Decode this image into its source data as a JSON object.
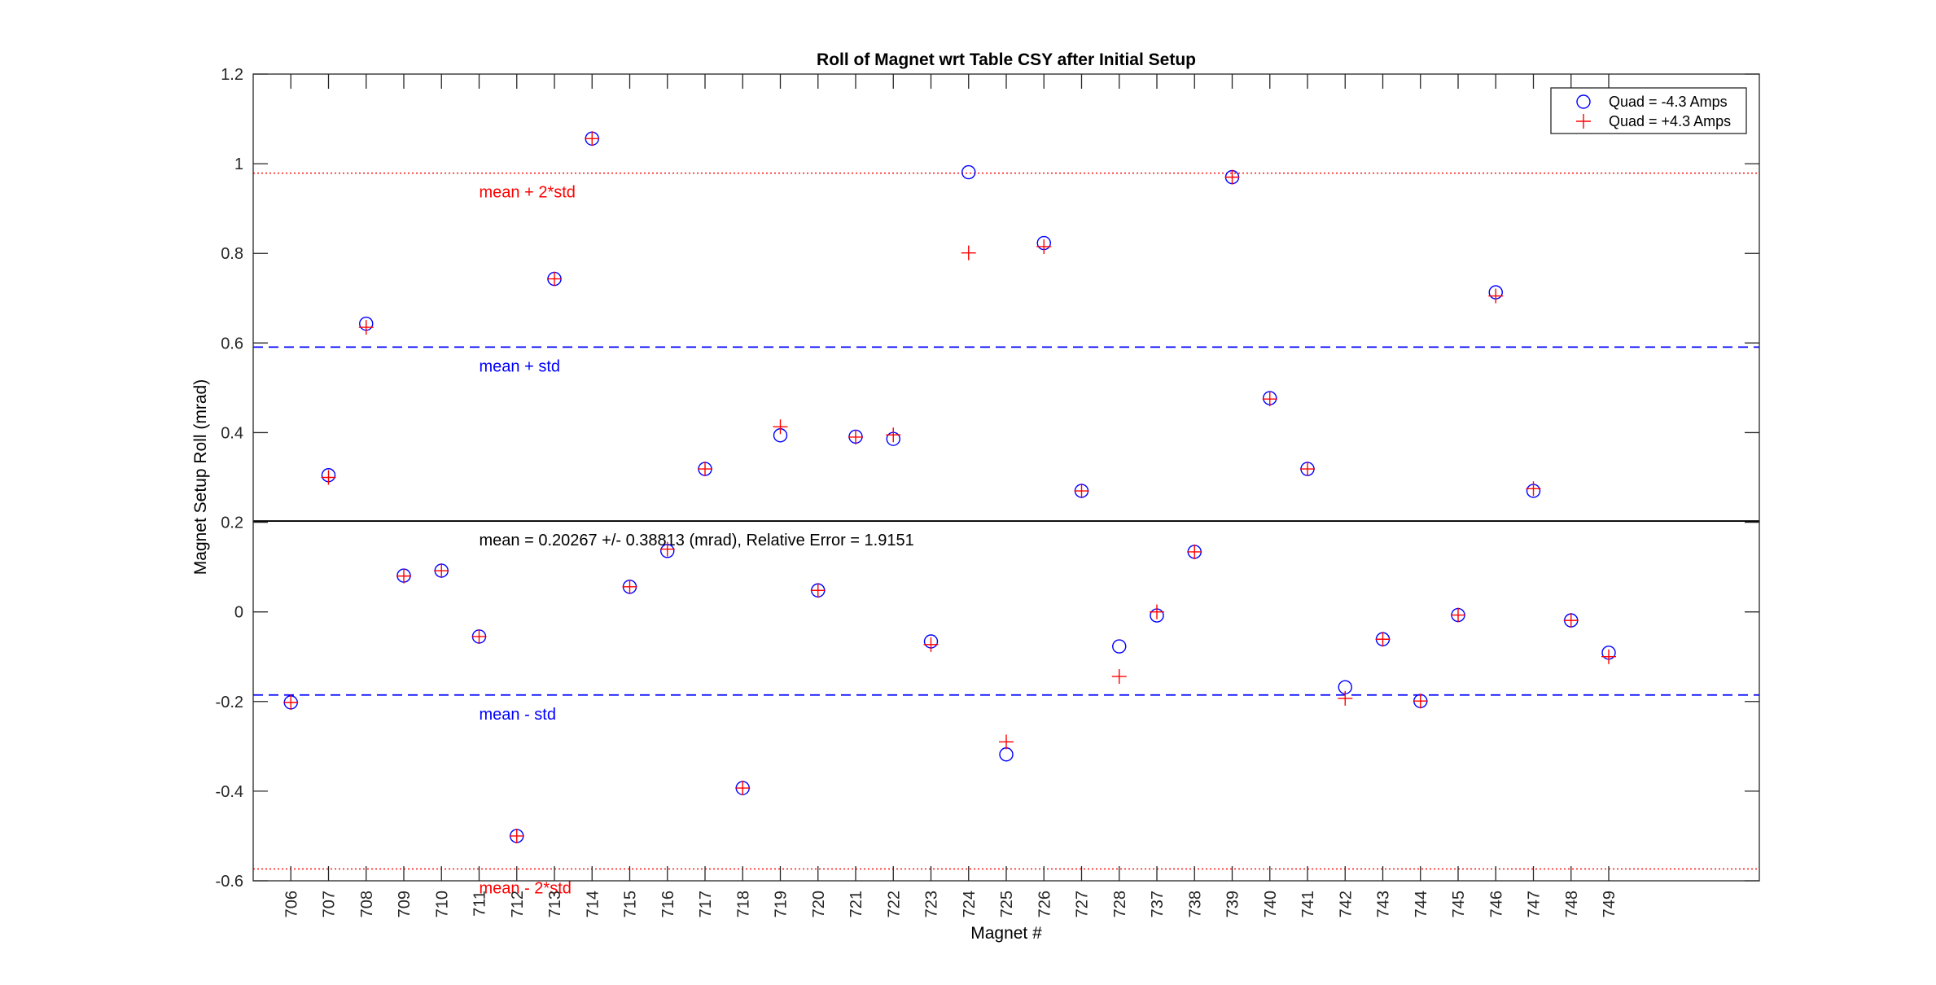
{
  "chart_data": {
    "type": "scatter",
    "title": "Roll of Magnet wrt Table CSY after Initial Setup",
    "xlabel": "Magnet #",
    "ylabel": "Magnet Setup Roll (mrad)",
    "ylim": [
      -0.6,
      1.2
    ],
    "yticks": [
      -0.6,
      -0.4,
      -0.2,
      0,
      0.2,
      0.4,
      0.6,
      0.8,
      1,
      1.2
    ],
    "ytick_labels": [
      "-0.6",
      "-0.4",
      "-0.2",
      "0",
      "0.2",
      "0.4",
      "0.6",
      "0.8",
      "1",
      "1.2"
    ],
    "xlim": [
      0,
      40
    ],
    "categories": [
      "706",
      "707",
      "708",
      "709",
      "710",
      "711",
      "712",
      "713",
      "714",
      "715",
      "716",
      "717",
      "718",
      "719",
      "720",
      "721",
      "722",
      "723",
      "724",
      "725",
      "726",
      "727",
      "728",
      "737",
      "738",
      "739",
      "740",
      "741",
      "742",
      "743",
      "744",
      "745",
      "746",
      "747",
      "748",
      "749"
    ],
    "grid": false,
    "legend_position": "top-right",
    "series": [
      {
        "name": "Quad = -4.3 Amps",
        "marker": "circle",
        "color": "#0000ff",
        "values": [
          -0.202,
          0.305,
          0.643,
          0.081,
          0.092,
          -0.055,
          -0.5,
          0.743,
          1.056,
          0.056,
          0.136,
          0.319,
          -0.393,
          0.394,
          0.048,
          0.391,
          0.386,
          -0.066,
          0.981,
          -0.318,
          0.823,
          0.27,
          -0.077,
          -0.008,
          0.134,
          0.97,
          0.477,
          0.319,
          -0.168,
          -0.061,
          -0.199,
          -0.007,
          0.713,
          0.27,
          -0.019,
          -0.091
        ]
      },
      {
        "name": "Quad = +4.3 Amps",
        "marker": "plus",
        "color": "#ff0000",
        "values": [
          -0.202,
          0.3,
          0.635,
          0.08,
          0.092,
          -0.055,
          -0.5,
          0.743,
          1.056,
          0.056,
          0.14,
          0.319,
          -0.393,
          0.413,
          0.048,
          0.39,
          0.395,
          -0.073,
          0.801,
          -0.29,
          0.815,
          0.27,
          -0.144,
          0.0,
          0.134,
          0.97,
          0.475,
          0.319,
          -0.193,
          -0.061,
          -0.199,
          -0.007,
          0.705,
          0.275,
          -0.019,
          -0.1
        ]
      }
    ],
    "reference_lines": [
      {
        "label": "mean + 2*std",
        "value": 0.97893,
        "color": "#ff0000",
        "style": "dotted"
      },
      {
        "label": "mean + std",
        "value": 0.5908,
        "color": "#0000ff",
        "style": "dashed"
      },
      {
        "label": "mean = 0.20267 +/- 0.38813 (mrad), Relative Error = 1.9151",
        "value": 0.20267,
        "color": "#000000",
        "style": "solid"
      },
      {
        "label": "mean - std",
        "value": -0.18546,
        "color": "#0000ff",
        "style": "dashed"
      },
      {
        "label": "mean - 2*std",
        "value": -0.57359,
        "color": "#ff0000",
        "style": "dotted"
      }
    ],
    "annotation_x": 6
  }
}
